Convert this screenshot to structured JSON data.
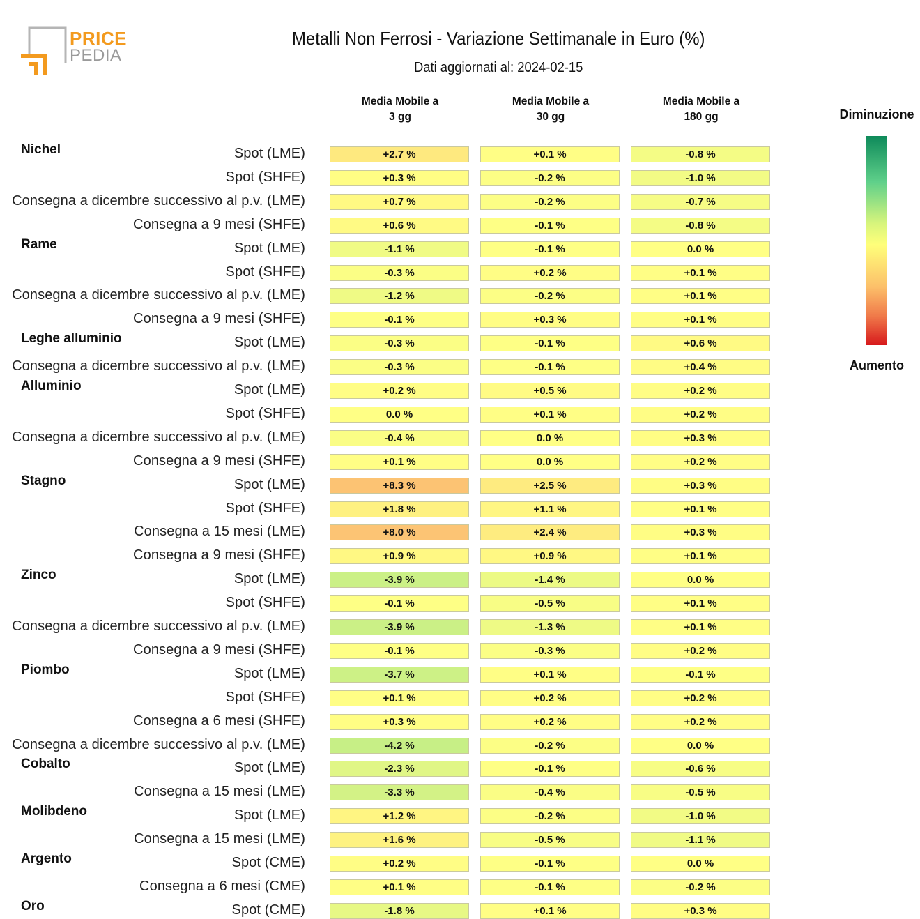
{
  "header": {
    "logo_word1": "PRICE",
    "logo_word2": "PEDIA",
    "title": "Metalli Non Ferrosi - Variazione Settimanale in Euro (%)",
    "subtitle": "Dati aggiornati al: 2024-02-15"
  },
  "legend": {
    "top_label": "Diminuzione",
    "bottom_label": "Aumento",
    "colors": [
      "#0e8a5a",
      "#5fd08a",
      "#d8f57c",
      "#ffff7a",
      "#fcc06a",
      "#f07a4a",
      "#d7191c"
    ]
  },
  "chart_data": {
    "type": "table",
    "title": "Metalli Non Ferrosi - Variazione Settimanale in Euro (%)",
    "columns": [
      "Media Mobile a\n3 gg",
      "Media Mobile a\n30 gg",
      "Media Mobile a\n180 gg"
    ],
    "unit": "%",
    "rows": [
      {
        "group": "Nichel",
        "label": "Spot (LME)",
        "values": [
          2.7,
          0.1,
          -0.8
        ],
        "text": [
          "+2.7 %",
          "+0.1 %",
          "-0.8 %"
        ]
      },
      {
        "group": "",
        "label": "Spot (SHFE)",
        "values": [
          0.3,
          -0.2,
          -1.0
        ],
        "text": [
          "+0.3 %",
          "-0.2 %",
          "-1.0 %"
        ]
      },
      {
        "group": "",
        "label": "Consegna a dicembre successivo al p.v. (LME)",
        "values": [
          0.7,
          -0.2,
          -0.7
        ],
        "text": [
          "+0.7 %",
          "-0.2 %",
          "-0.7 %"
        ]
      },
      {
        "group": "",
        "label": "Consegna a 9 mesi (SHFE)",
        "values": [
          0.6,
          -0.1,
          -0.8
        ],
        "text": [
          "+0.6 %",
          "-0.1 %",
          "-0.8 %"
        ]
      },
      {
        "group": "Rame",
        "label": "Spot (LME)",
        "values": [
          -1.1,
          -0.1,
          0.0
        ],
        "text": [
          "-1.1 %",
          "-0.1 %",
          "0.0 %"
        ]
      },
      {
        "group": "",
        "label": "Spot (SHFE)",
        "values": [
          -0.3,
          0.2,
          0.1
        ],
        "text": [
          "-0.3 %",
          "+0.2 %",
          "+0.1 %"
        ]
      },
      {
        "group": "",
        "label": "Consegna a dicembre successivo al p.v. (LME)",
        "values": [
          -1.2,
          -0.2,
          0.1
        ],
        "text": [
          "-1.2 %",
          "-0.2 %",
          "+0.1 %"
        ]
      },
      {
        "group": "",
        "label": "Consegna a 9 mesi (SHFE)",
        "values": [
          -0.1,
          0.3,
          0.1
        ],
        "text": [
          "-0.1 %",
          "+0.3 %",
          "+0.1 %"
        ]
      },
      {
        "group": "Leghe alluminio",
        "label": "Spot (LME)",
        "values": [
          -0.3,
          -0.1,
          0.6
        ],
        "text": [
          "-0.3 %",
          "-0.1 %",
          "+0.6 %"
        ]
      },
      {
        "group": "",
        "label": "Consegna a dicembre successivo al p.v. (LME)",
        "values": [
          -0.3,
          -0.1,
          0.4
        ],
        "text": [
          "-0.3 %",
          "-0.1 %",
          "+0.4 %"
        ]
      },
      {
        "group": "Alluminio",
        "label": "Spot (LME)",
        "values": [
          0.2,
          0.5,
          0.2
        ],
        "text": [
          "+0.2 %",
          "+0.5 %",
          "+0.2 %"
        ]
      },
      {
        "group": "",
        "label": "Spot (SHFE)",
        "values": [
          0.0,
          0.1,
          0.2
        ],
        "text": [
          "0.0 %",
          "+0.1 %",
          "+0.2 %"
        ]
      },
      {
        "group": "",
        "label": "Consegna a dicembre successivo al p.v. (LME)",
        "values": [
          -0.4,
          0.0,
          0.3
        ],
        "text": [
          "-0.4 %",
          "0.0 %",
          "+0.3 %"
        ]
      },
      {
        "group": "",
        "label": "Consegna a 9 mesi (SHFE)",
        "values": [
          0.1,
          0.0,
          0.2
        ],
        "text": [
          "+0.1 %",
          "0.0 %",
          "+0.2 %"
        ]
      },
      {
        "group": "Stagno",
        "label": "Spot (LME)",
        "values": [
          8.3,
          2.5,
          0.3
        ],
        "text": [
          "+8.3 %",
          "+2.5 %",
          "+0.3 %"
        ]
      },
      {
        "group": "",
        "label": "Spot (SHFE)",
        "values": [
          1.8,
          1.1,
          0.1
        ],
        "text": [
          "+1.8 %",
          "+1.1 %",
          "+0.1 %"
        ]
      },
      {
        "group": "",
        "label": "Consegna a 15 mesi (LME)",
        "values": [
          8.0,
          2.4,
          0.3
        ],
        "text": [
          "+8.0 %",
          "+2.4 %",
          "+0.3 %"
        ]
      },
      {
        "group": "",
        "label": "Consegna a 9 mesi (SHFE)",
        "values": [
          0.9,
          0.9,
          0.1
        ],
        "text": [
          "+0.9 %",
          "+0.9 %",
          "+0.1 %"
        ]
      },
      {
        "group": "Zinco",
        "label": "Spot (LME)",
        "values": [
          -3.9,
          -1.4,
          0.0
        ],
        "text": [
          "-3.9 %",
          "-1.4 %",
          "0.0 %"
        ]
      },
      {
        "group": "",
        "label": "Spot (SHFE)",
        "values": [
          -0.1,
          -0.5,
          0.1
        ],
        "text": [
          "-0.1 %",
          "-0.5 %",
          "+0.1 %"
        ]
      },
      {
        "group": "",
        "label": "Consegna a dicembre successivo al p.v. (LME)",
        "values": [
          -3.9,
          -1.3,
          0.1
        ],
        "text": [
          "-3.9 %",
          "-1.3 %",
          "+0.1 %"
        ]
      },
      {
        "group": "",
        "label": "Consegna a 9 mesi (SHFE)",
        "values": [
          -0.1,
          -0.3,
          0.2
        ],
        "text": [
          "-0.1 %",
          "-0.3 %",
          "+0.2 %"
        ]
      },
      {
        "group": "Piombo",
        "label": "Spot (LME)",
        "values": [
          -3.7,
          0.1,
          -0.1
        ],
        "text": [
          "-3.7 %",
          "+0.1 %",
          "-0.1 %"
        ]
      },
      {
        "group": "",
        "label": "Spot (SHFE)",
        "values": [
          0.1,
          0.2,
          0.2
        ],
        "text": [
          "+0.1 %",
          "+0.2 %",
          "+0.2 %"
        ]
      },
      {
        "group": "",
        "label": "Consegna a 6 mesi (SHFE)",
        "values": [
          0.3,
          0.2,
          0.2
        ],
        "text": [
          "+0.3 %",
          "+0.2 %",
          "+0.2 %"
        ]
      },
      {
        "group": "",
        "label": "Consegna a dicembre successivo al p.v. (LME)",
        "values": [
          -4.2,
          -0.2,
          0.0
        ],
        "text": [
          "-4.2 %",
          "-0.2 %",
          "0.0 %"
        ]
      },
      {
        "group": "Cobalto",
        "label": "Spot (LME)",
        "values": [
          -2.3,
          -0.1,
          -0.6
        ],
        "text": [
          "-2.3 %",
          "-0.1 %",
          "-0.6 %"
        ]
      },
      {
        "group": "",
        "label": "Consegna a 15 mesi (LME)",
        "values": [
          -3.3,
          -0.4,
          -0.5
        ],
        "text": [
          "-3.3 %",
          "-0.4 %",
          "-0.5 %"
        ]
      },
      {
        "group": "Molibdeno",
        "label": "Spot (LME)",
        "values": [
          1.2,
          -0.2,
          -1.0
        ],
        "text": [
          "+1.2 %",
          "-0.2 %",
          "-1.0 %"
        ]
      },
      {
        "group": "",
        "label": "Consegna a 15 mesi (LME)",
        "values": [
          1.6,
          -0.5,
          -1.1
        ],
        "text": [
          "+1.6 %",
          "-0.5 %",
          "-1.1 %"
        ]
      },
      {
        "group": "Argento",
        "label": "Spot (CME)",
        "values": [
          0.2,
          -0.1,
          0.0
        ],
        "text": [
          "+0.2 %",
          "-0.1 %",
          "0.0 %"
        ]
      },
      {
        "group": "",
        "label": "Consegna a 6 mesi (CME)",
        "values": [
          0.1,
          -0.1,
          -0.2
        ],
        "text": [
          "+0.1 %",
          "-0.1 %",
          "-0.2 %"
        ]
      },
      {
        "group": "Oro",
        "label": "Spot (CME)",
        "values": [
          -1.8,
          0.1,
          0.3
        ],
        "text": [
          "-1.8 %",
          "+0.1 %",
          "+0.3 %"
        ]
      }
    ]
  }
}
